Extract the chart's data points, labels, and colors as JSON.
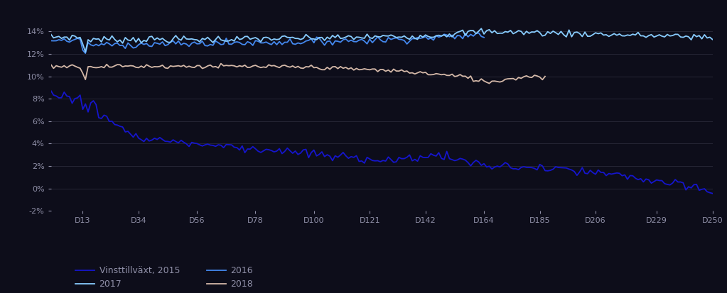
{
  "background_color": "#0d0d1a",
  "plot_bg_color": "#0d0d1a",
  "grid_color": "#2a2a3a",
  "text_color": "#9090a8",
  "ylim": [
    -0.02,
    0.155
  ],
  "yticks": [
    -0.02,
    0.0,
    0.02,
    0.04,
    0.06,
    0.08,
    0.1,
    0.12,
    0.14
  ],
  "xtick_labels": [
    "D13",
    "D34",
    "D56",
    "D78",
    "D100",
    "D121",
    "D142",
    "D164",
    "D185",
    "D206",
    "D229",
    "D250"
  ],
  "xtick_positions": [
    13,
    34,
    56,
    78,
    100,
    121,
    142,
    164,
    185,
    206,
    229,
    250
  ],
  "series": {
    "2015": {
      "color": "#1515cc",
      "lw": 1.3
    },
    "2016": {
      "color": "#4488ee",
      "lw": 1.3
    },
    "2017": {
      "color": "#88ccff",
      "lw": 1.3
    },
    "2018": {
      "color": "#d4b8a8",
      "lw": 1.3
    }
  },
  "legend_labels": [
    "Vinsttillväxt, 2015",
    "2017",
    "2016",
    "2018"
  ]
}
